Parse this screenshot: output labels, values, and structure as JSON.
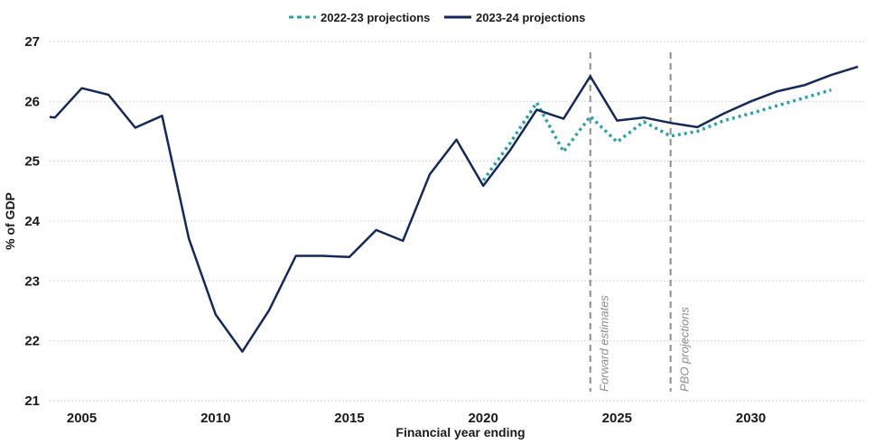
{
  "chart_data": {
    "type": "line",
    "title": "",
    "xlabel": "Financial year ending",
    "ylabel": "% of GDP",
    "ylim": [
      21,
      27
    ],
    "yticks": [
      21,
      22,
      23,
      24,
      25,
      26,
      27
    ],
    "xlim": [
      2003.8,
      2034.3
    ],
    "xticks": [
      2005,
      2010,
      2015,
      2020,
      2025,
      2030
    ],
    "grid": "horizontal",
    "legend_position": "top-center",
    "series": [
      {
        "name": "2022-23 projections",
        "style": "dotted",
        "color": "#2aa1ad",
        "points": [
          [
            2020,
            24.68
          ],
          [
            2021,
            25.3
          ],
          [
            2022,
            25.98
          ],
          [
            2023,
            25.16
          ],
          [
            2024,
            25.75
          ],
          [
            2025,
            25.32
          ],
          [
            2026,
            25.66
          ],
          [
            2027,
            25.42
          ],
          [
            2028,
            25.5
          ],
          [
            2029,
            25.68
          ],
          [
            2030,
            25.8
          ],
          [
            2031,
            25.93
          ],
          [
            2032,
            26.06
          ],
          [
            2033,
            26.19
          ]
        ]
      },
      {
        "name": "2023-24 projections",
        "style": "solid",
        "color": "#14285a",
        "points": [
          [
            2003.8,
            25.74
          ],
          [
            2004,
            25.73
          ],
          [
            2005,
            26.22
          ],
          [
            2006,
            26.11
          ],
          [
            2007,
            25.56
          ],
          [
            2008,
            25.76
          ],
          [
            2009,
            23.71
          ],
          [
            2010,
            22.44
          ],
          [
            2011,
            21.82
          ],
          [
            2012,
            22.51
          ],
          [
            2013,
            23.42
          ],
          [
            2014,
            23.42
          ],
          [
            2015,
            23.4
          ],
          [
            2016,
            23.85
          ],
          [
            2017,
            23.67
          ],
          [
            2018,
            24.78
          ],
          [
            2019,
            25.36
          ],
          [
            2020,
            24.59
          ],
          [
            2021,
            25.18
          ],
          [
            2022,
            25.86
          ],
          [
            2023,
            25.71
          ],
          [
            2024,
            26.42
          ],
          [
            2025,
            25.68
          ],
          [
            2026,
            25.73
          ],
          [
            2027,
            25.64
          ],
          [
            2028,
            25.57
          ],
          [
            2029,
            25.8
          ],
          [
            2030,
            26.0
          ],
          [
            2031,
            26.17
          ],
          [
            2032,
            26.27
          ],
          [
            2033,
            26.44
          ],
          [
            2034,
            26.58
          ]
        ]
      }
    ],
    "vlines": [
      {
        "x": 2024,
        "label": "Forward estimates"
      },
      {
        "x": 2027,
        "label": "PBO projections"
      }
    ]
  }
}
